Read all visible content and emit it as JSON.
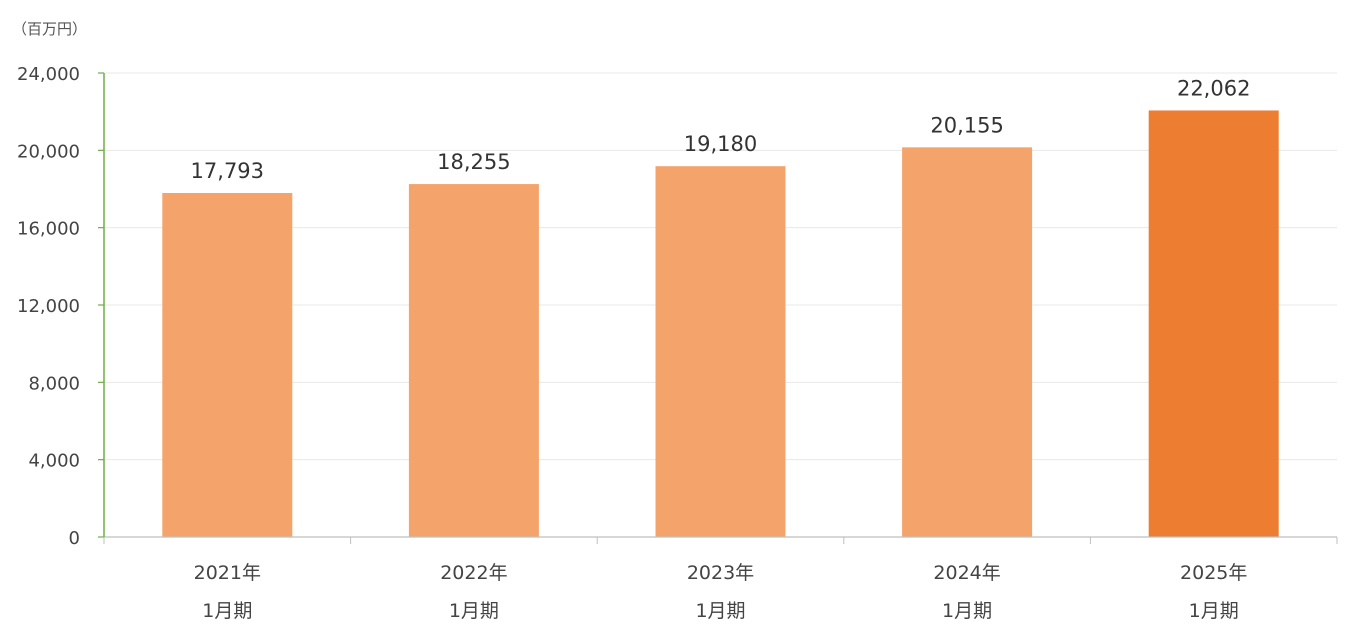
{
  "chart_data": {
    "type": "bar",
    "unit_label": "（百万円）",
    "categories": [
      [
        "2021年",
        "1月期"
      ],
      [
        "2022年",
        "1月期"
      ],
      [
        "2023年",
        "1月期"
      ],
      [
        "2024年",
        "1月期"
      ],
      [
        "2025年",
        "1月期"
      ]
    ],
    "values": [
      17793,
      18255,
      19180,
      20155,
      22062
    ],
    "value_labels": [
      "17,793",
      "18,255",
      "19,180",
      "20,155",
      "22,062"
    ],
    "yticks": [
      0,
      4000,
      8000,
      12000,
      16000,
      20000,
      24000
    ],
    "ytick_labels": [
      "0",
      "4,000",
      "8,000",
      "12,000",
      "16,000",
      "20,000",
      "24,000"
    ],
    "ylim": [
      0,
      24000
    ],
    "grid": true,
    "colors": {
      "bar": "#F4A46B",
      "bar_highlight": "#ED7D31",
      "y_axis": "#70AD47",
      "grid": "#E8E8E8"
    },
    "highlight_index": 4
  }
}
